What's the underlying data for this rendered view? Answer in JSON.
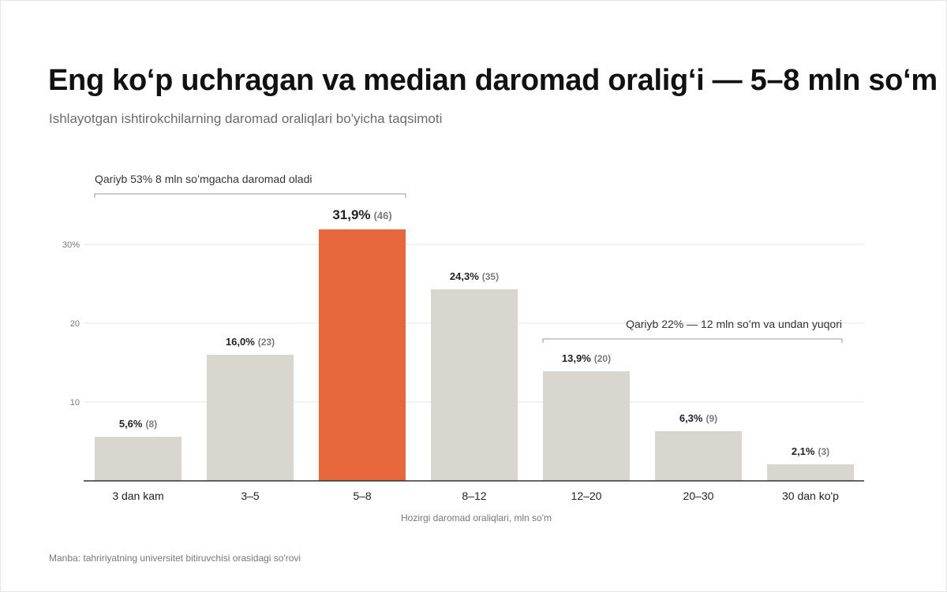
{
  "title": "Eng koʻp uchragan va median daromad oraligʻi — 5–8 mln soʻm",
  "subtitle": "Ishlayotgan ishtirokchilarning daromad oraliqlari bo'yicha taqsimoti",
  "source": "Manba: tahririyatning universitet bitiruvchisi orasidagi so'rovi",
  "colors": {
    "bar": "#d9d6cf",
    "highlight": "#e8673c",
    "grid": "#e4e4e4",
    "axis": "#333333"
  },
  "chart_data": {
    "type": "bar",
    "categories": [
      "3 dan kam",
      "3–5",
      "5–8",
      "8–12",
      "12–20",
      "20–30",
      "30 dan ko'p"
    ],
    "values": [
      5.6,
      16.0,
      31.9,
      24.3,
      13.9,
      6.3,
      2.1
    ],
    "value_labels": [
      "5,6%",
      "16,0%",
      "31,9%",
      "24,3%",
      "13,9%",
      "6,3%",
      "2,1%"
    ],
    "count_labels": [
      "(8)",
      "(23)",
      "(46)",
      "(35)",
      "(20)",
      "(9)",
      "(3)"
    ],
    "highlight_index": 2,
    "ylim": [
      0,
      30
    ],
    "yticks": [
      10,
      20,
      30
    ],
    "ytick_labels": [
      "10",
      "20",
      "30%"
    ],
    "xlabel": "Hozirgi daromad oraliqlari, mln so'm",
    "ylabel": "",
    "grid": true,
    "annotations": [
      {
        "text": "Qariyb 53% 8 mln soʻmgacha daromad oladi",
        "from_index": 0,
        "to_index": 2
      },
      {
        "text": "Qariyb 22% — 12 mln soʻm va undan yuqori",
        "from_index": 4,
        "to_index": 6
      }
    ]
  }
}
